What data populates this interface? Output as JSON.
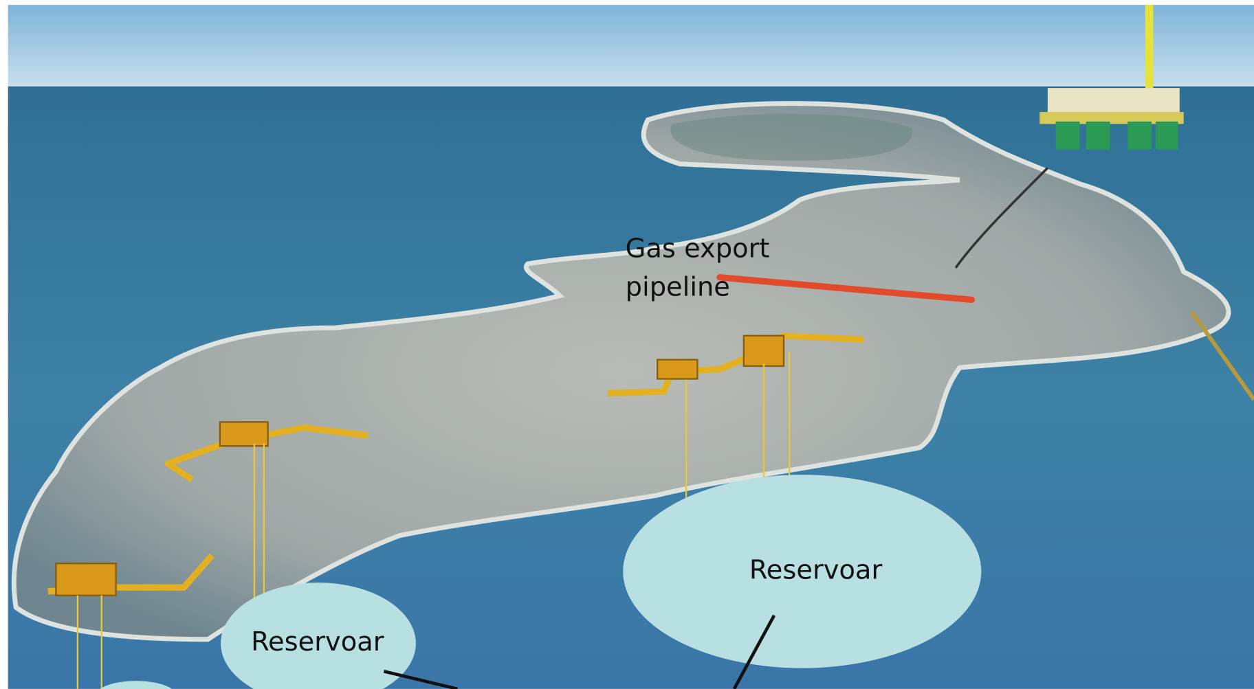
{
  "labels": [
    {
      "lines": [
        "Gas export",
        "pipeline"
      ]
    },
    {
      "lines": [
        "Reservoar"
      ]
    },
    {
      "lines": [
        "Reservoar"
      ]
    }
  ]
}
